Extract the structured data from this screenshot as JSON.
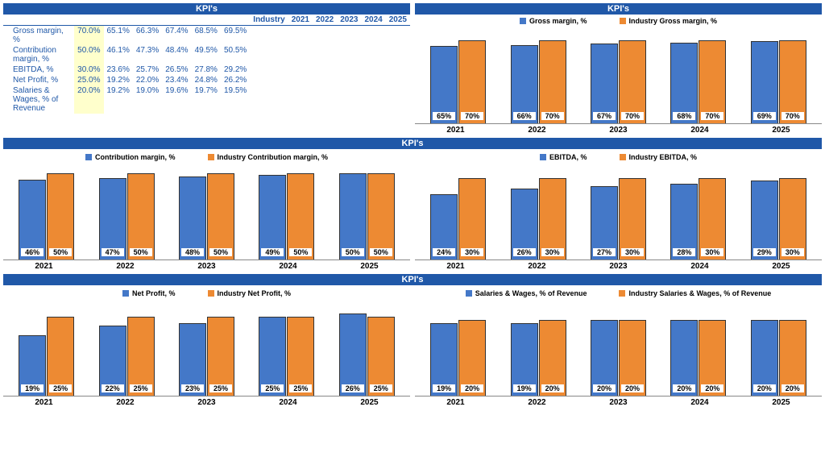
{
  "title": "KPI's",
  "colors": {
    "series1": "#4478c8",
    "series2": "#ed8a33",
    "header": "#2058a8",
    "highlight": "#ffffcc"
  },
  "years": [
    "2021",
    "2022",
    "2023",
    "2024",
    "2025"
  ],
  "table": {
    "headers": [
      "Industry",
      "2021",
      "2022",
      "2023",
      "2024",
      "2025"
    ],
    "rows": [
      {
        "label": "Gross margin, %",
        "industry": "70.0%",
        "vals": [
          "65.1%",
          "66.3%",
          "67.4%",
          "68.5%",
          "69.5%"
        ]
      },
      {
        "label": "Contribution margin, %",
        "industry": "50.0%",
        "vals": [
          "46.1%",
          "47.3%",
          "48.4%",
          "49.5%",
          "50.5%"
        ]
      },
      {
        "label": "EBITDA, %",
        "industry": "30.0%",
        "vals": [
          "23.6%",
          "25.7%",
          "26.5%",
          "27.8%",
          "29.2%"
        ]
      },
      {
        "label": "Net Profit, %",
        "industry": "25.0%",
        "vals": [
          "19.2%",
          "22.0%",
          "23.4%",
          "24.8%",
          "26.2%"
        ]
      },
      {
        "label": "Salaries & Wages, % of Revenue",
        "industry": "20.0%",
        "vals": [
          "19.2%",
          "19.0%",
          "19.6%",
          "19.7%",
          "19.5%"
        ]
      }
    ]
  },
  "charts": [
    {
      "s1name": "Gross margin, %",
      "s2name": "Industry Gross margin, %",
      "ymax": 80,
      "s1": [
        65,
        66,
        67,
        68,
        69
      ],
      "s2": [
        70,
        70,
        70,
        70,
        70
      ],
      "s1lbl": [
        "65%",
        "66%",
        "67%",
        "68%",
        "69%"
      ],
      "s2lbl": [
        "70%",
        "70%",
        "70%",
        "70%",
        "70%"
      ]
    },
    {
      "s1name": "Contribution margin, %",
      "s2name": "Industry Contribution margin, %",
      "ymax": 55,
      "s1": [
        46,
        47,
        48,
        49,
        50
      ],
      "s2": [
        50,
        50,
        50,
        50,
        50
      ],
      "s1lbl": [
        "46%",
        "47%",
        "48%",
        "49%",
        "50%"
      ],
      "s2lbl": [
        "50%",
        "50%",
        "50%",
        "50%",
        "50%"
      ]
    },
    {
      "s1name": "EBITDA, %",
      "s2name": "Industry EBITDA, %",
      "ymax": 35,
      "s1": [
        24,
        26,
        27,
        28,
        29
      ],
      "s2": [
        30,
        30,
        30,
        30,
        30
      ],
      "s1lbl": [
        "24%",
        "26%",
        "27%",
        "28%",
        "29%"
      ],
      "s2lbl": [
        "30%",
        "30%",
        "30%",
        "30%",
        "30%"
      ]
    },
    {
      "s1name": "Net Profit, %",
      "s2name": "Industry Net Profit, %",
      "ymax": 30,
      "s1": [
        19,
        22,
        23,
        25,
        26
      ],
      "s2": [
        25,
        25,
        25,
        25,
        25
      ],
      "s1lbl": [
        "19%",
        "22%",
        "23%",
        "25%",
        "26%"
      ],
      "s2lbl": [
        "25%",
        "25%",
        "25%",
        "25%",
        "25%"
      ]
    },
    {
      "s1name": "Salaries & Wages, % of Revenue",
      "s2name": "Industry Salaries & Wages, % of Revenue",
      "ymax": 25,
      "s1": [
        19,
        19,
        20,
        20,
        20
      ],
      "s2": [
        20,
        20,
        20,
        20,
        20
      ],
      "s1lbl": [
        "19%",
        "19%",
        "20%",
        "20%",
        "20%"
      ],
      "s2lbl": [
        "20%",
        "20%",
        "20%",
        "20%",
        "20%"
      ]
    }
  ]
}
